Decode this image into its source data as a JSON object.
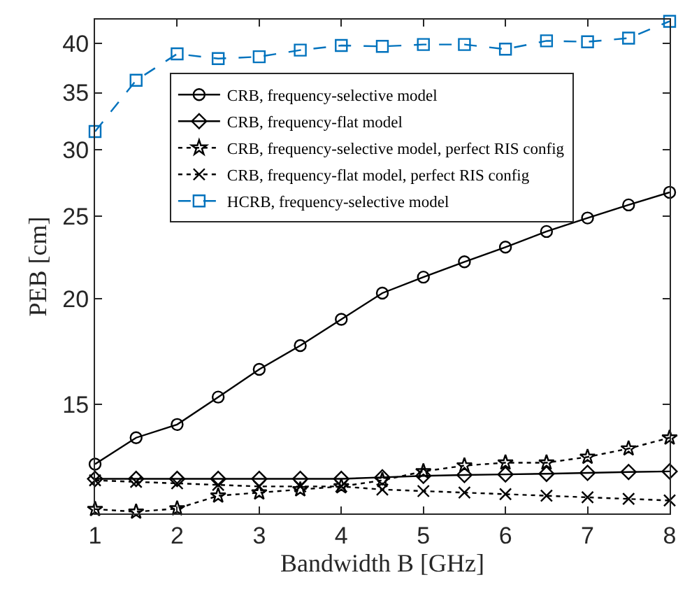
{
  "chart_data": {
    "type": "line",
    "xlabel": "Bandwidth B [GHz]",
    "ylabel": "PEB [cm]",
    "log": "y",
    "legend": "top",
    "xlim": [
      1,
      8
    ],
    "xticks": [
      1,
      2,
      3,
      4,
      5,
      6,
      7,
      8
    ],
    "ylim": [
      11.15,
      42.7
    ],
    "yticks": [
      15,
      20,
      25,
      30,
      35,
      40
    ],
    "x": [
      1,
      1.5,
      2,
      2.5,
      3,
      3.5,
      4,
      4.5,
      5,
      5.5,
      6,
      6.5,
      7,
      7.5,
      8
    ],
    "series": [
      {
        "name": "CRB, frequency-selective model",
        "color": "#000000",
        "marker": "circle",
        "line_style": "solid",
        "values": [
          12.75,
          13.7,
          14.2,
          15.3,
          16.5,
          17.6,
          18.9,
          20.3,
          21.2,
          22.1,
          23.0,
          24.0,
          24.9,
          25.8,
          26.7
        ]
      },
      {
        "name": "CRB, frequency-flat model",
        "color": "#000000",
        "marker": "diamond",
        "line_style": "solid",
        "values": [
          12.25,
          12.25,
          12.25,
          12.25,
          12.25,
          12.25,
          12.25,
          12.3,
          12.35,
          12.38,
          12.4,
          12.42,
          12.45,
          12.48,
          12.5
        ]
      },
      {
        "name": "CRB, frequency-selective model, perfect RIS config",
        "color": "#000000",
        "marker": "star",
        "line_style": "dotted",
        "values": [
          11.28,
          11.2,
          11.3,
          11.7,
          11.8,
          11.9,
          12.0,
          12.2,
          12.5,
          12.7,
          12.8,
          12.8,
          13.0,
          13.3,
          13.7
        ]
      },
      {
        "name": "CRB, frequency-flat model, perfect RIS config",
        "color": "#000000",
        "marker": "cross",
        "line_style": "dotted",
        "values": [
          12.2,
          12.15,
          12.1,
          12.05,
          12.0,
          12.0,
          12.0,
          11.9,
          11.85,
          11.8,
          11.75,
          11.7,
          11.65,
          11.6,
          11.55
        ]
      },
      {
        "name": "HCRB, frequency-selective model",
        "color": "#0072bd",
        "marker": "square",
        "line_style": "dashed",
        "values": [
          31.5,
          36.2,
          38.9,
          38.4,
          38.6,
          39.3,
          39.8,
          39.7,
          39.9,
          39.9,
          39.4,
          40.3,
          40.2,
          40.6,
          42.5
        ]
      }
    ]
  }
}
